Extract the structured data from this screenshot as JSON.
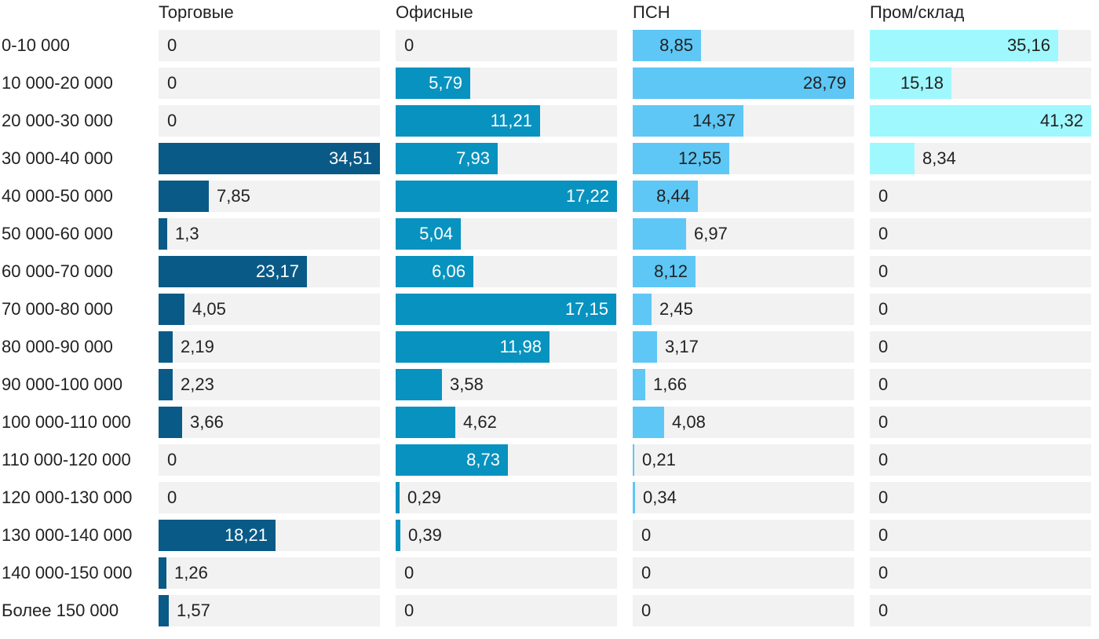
{
  "chart_data": {
    "type": "bar",
    "orientation": "horizontal",
    "layout": "small-multiples",
    "title": "",
    "categories": [
      "0-10 000",
      "10 000-20 000",
      "20 000-30 000",
      "30 000-40 000",
      "40 000-50 000",
      "50 000-60 000",
      "60 000-70 000",
      "70 000-80 000",
      "80 000-90 000",
      "90 000-100 000",
      "100 000-110 000",
      "110 000-120 000",
      "120 000-130 000",
      "130 000-140 000",
      "140 000-150 000",
      "Более 150 000"
    ],
    "series": [
      {
        "name": "Торговые",
        "color": "#0a5a87",
        "values": [
          0,
          0,
          0,
          34.51,
          7.85,
          1.3,
          23.17,
          4.05,
          2.19,
          2.23,
          3.66,
          0,
          0,
          18.21,
          1.26,
          1.57
        ],
        "labels": [
          "0",
          "0",
          "0",
          "34,51",
          "7,85",
          "1,3",
          "23,17",
          "4,05",
          "2,19",
          "2,23",
          "3,66",
          "0",
          "0",
          "18,21",
          "1,26",
          "1,57"
        ]
      },
      {
        "name": "Офисные",
        "color": "#0892bf",
        "values": [
          0,
          5.79,
          11.21,
          7.93,
          17.22,
          5.04,
          6.06,
          17.15,
          11.98,
          3.58,
          4.62,
          8.73,
          0.29,
          0.39,
          0,
          0
        ],
        "labels": [
          "0",
          "5,79",
          "11,21",
          "7,93",
          "17,22",
          "5,04",
          "6,06",
          "17,15",
          "11,98",
          "3,58",
          "4,62",
          "8,73",
          "0,29",
          "0,39",
          "0",
          "0"
        ]
      },
      {
        "name": "ПСН",
        "color": "#5ec7f5",
        "values": [
          8.85,
          28.79,
          14.37,
          12.55,
          8.44,
          6.97,
          8.12,
          2.45,
          3.17,
          1.66,
          4.08,
          0.21,
          0.34,
          0,
          0,
          0
        ],
        "labels": [
          "8,85",
          "28,79",
          "14,37",
          "12,55",
          "8,44",
          "6,97",
          "8,12",
          "2,45",
          "3,17",
          "1,66",
          "4,08",
          "0,21",
          "0,34",
          "0",
          "0",
          "0"
        ]
      },
      {
        "name": "Пром/склад",
        "color": "#9ff8fd",
        "values": [
          35.16,
          15.18,
          41.32,
          8.34,
          0,
          0,
          0,
          0,
          0,
          0,
          0,
          0,
          0,
          0,
          0,
          0
        ],
        "labels": [
          "35,16",
          "15,18",
          "41,32",
          "8,34",
          "0",
          "0",
          "0",
          "0",
          "0",
          "0",
          "0",
          "0",
          "0",
          "0",
          "0",
          "0"
        ]
      }
    ],
    "label_colors": {
      "inside_dark": "#ffffff",
      "inside_light": "#222222",
      "outside": "#222222"
    },
    "track_color": "#f2f2f2"
  }
}
